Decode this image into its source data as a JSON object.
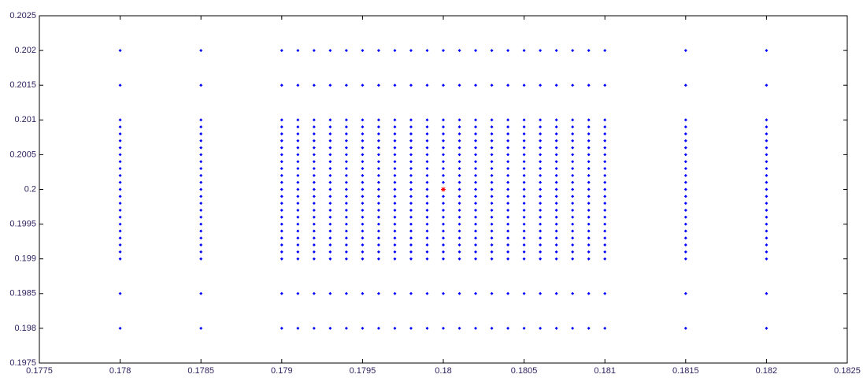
{
  "chart_data": {
    "type": "scatter",
    "xlim": [
      0.1775,
      0.1825
    ],
    "xticks": [
      0.1775,
      0.178,
      0.1785,
      0.179,
      0.1795,
      0.18,
      0.1805,
      0.181,
      0.1815,
      0.182,
      0.1825
    ],
    "ylim": [
      0.1975,
      0.2025
    ],
    "yticks": [
      0.1975,
      0.198,
      0.1985,
      0.199,
      0.1995,
      0.2,
      0.2005,
      0.201,
      0.2015,
      0.202,
      0.2025
    ],
    "grid": false,
    "series": [
      {
        "color": "#0000ff",
        "marker": "dot",
        "mesh": true,
        "x": [
          0.178,
          0.1785,
          0.179,
          0.1791,
          0.1792,
          0.1793,
          0.1794,
          0.1795,
          0.1796,
          0.1797,
          0.1798,
          0.1799,
          0.18,
          0.1801,
          0.1802,
          0.1803,
          0.1804,
          0.1805,
          0.1806,
          0.1807,
          0.1808,
          0.1809,
          0.181,
          0.1815,
          0.182
        ],
        "y": [
          0.198,
          0.1985,
          0.199,
          0.1991,
          0.1992,
          0.1993,
          0.1994,
          0.1995,
          0.1996,
          0.1997,
          0.1998,
          0.1999,
          0.2,
          0.2001,
          0.2002,
          0.2003,
          0.2004,
          0.2005,
          0.2006,
          0.2007,
          0.2008,
          0.2009,
          0.201,
          0.2015,
          0.202
        ]
      },
      {
        "color": "#ff0000",
        "marker": "star",
        "x": [
          0.18
        ],
        "y": [
          0.2
        ]
      }
    ]
  }
}
